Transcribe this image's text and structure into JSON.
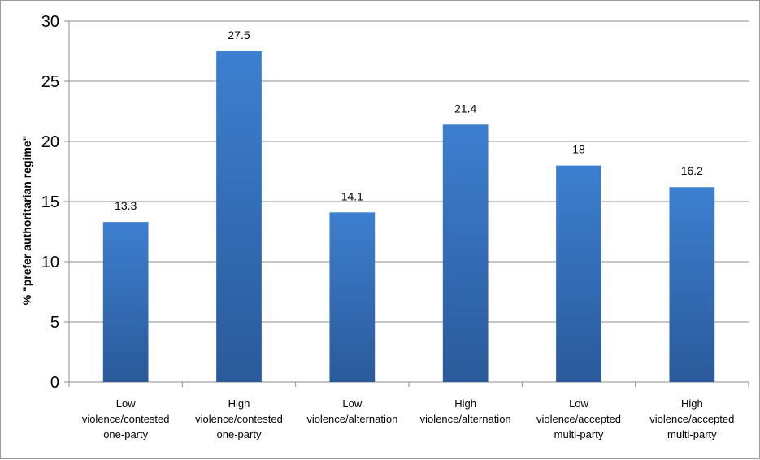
{
  "chart_data": {
    "type": "bar",
    "ylabel": "% \"prefer authoritarian regime\"",
    "ylim": [
      0,
      30
    ],
    "yticks": [
      0,
      5,
      10,
      15,
      20,
      25,
      30
    ],
    "grid": true,
    "categories": [
      [
        "Low",
        "violence/contested",
        "one-party"
      ],
      [
        "High",
        "violence/contested",
        "one-party"
      ],
      [
        "Low",
        "violence/alternation"
      ],
      [
        "High",
        "violence/alternation"
      ],
      [
        "Low",
        "violence/accepted",
        "multi-party"
      ],
      [
        "High",
        "violence/accepted",
        "multi-party"
      ]
    ],
    "values": [
      13.3,
      27.5,
      14.1,
      21.4,
      18,
      16.2
    ],
    "data_labels": [
      "13.3",
      "27.5",
      "14.1",
      "21.4",
      "18",
      "16.2"
    ],
    "colors": {
      "bar_top": "#3d7fd0",
      "bar_bottom": "#2a5a9a"
    }
  }
}
